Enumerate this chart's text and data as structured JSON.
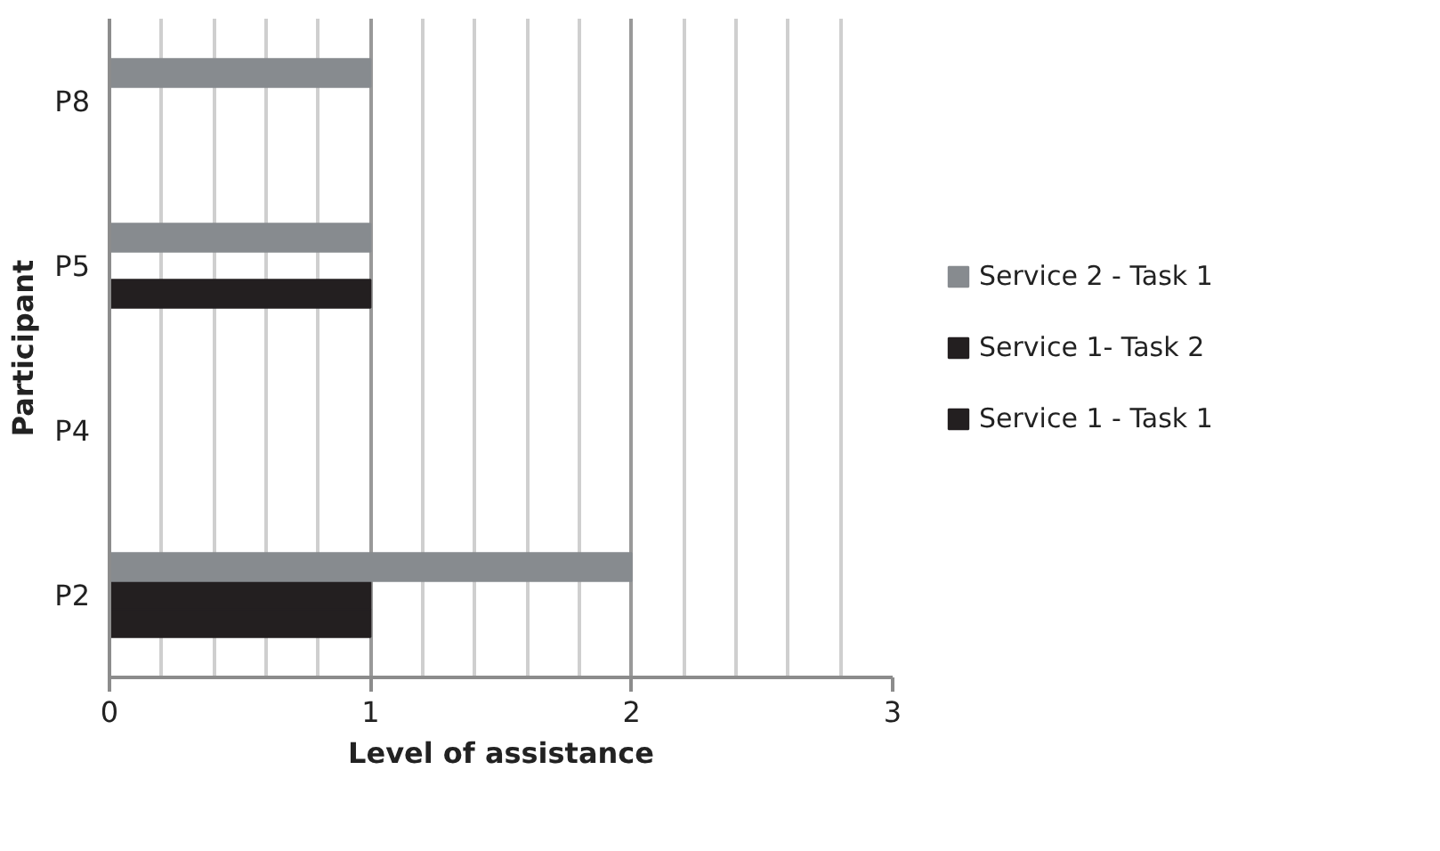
{
  "chart_data": {
    "type": "bar",
    "orientation": "horizontal",
    "xlabel": "Level of assistance",
    "ylabel": "Participant",
    "categories": [
      "P8",
      "P5",
      "P4",
      "P2"
    ],
    "series": [
      {
        "name": "Service 1 - Task 1",
        "color": "#231f20",
        "values": [
          null,
          1,
          null,
          1
        ]
      },
      {
        "name": "Service 1- Task 2",
        "color": "#231f20",
        "values": [
          null,
          null,
          null,
          1
        ]
      },
      {
        "name": "Service 2 - Task 1",
        "color": "#878b8f",
        "values": [
          1,
          1,
          null,
          2
        ]
      }
    ],
    "xlim": [
      0,
      3
    ],
    "xticks": [
      0,
      1,
      2,
      3
    ],
    "grid": "x",
    "legend": "right"
  }
}
